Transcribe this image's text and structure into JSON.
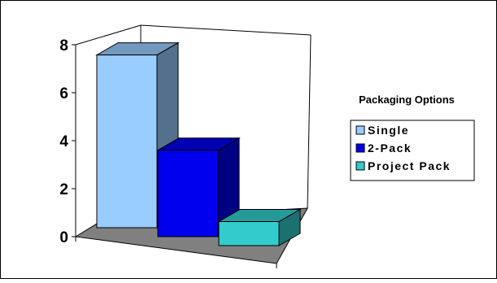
{
  "chart_data": {
    "type": "bar",
    "chart_style": "3d-column",
    "categories": [
      "Single",
      "2-Pack",
      "Project Pack"
    ],
    "values": [
      7.2,
      3.6,
      1.0
    ],
    "ylim": [
      0,
      8
    ],
    "yticks": [
      0,
      2,
      4,
      6,
      8
    ],
    "title": "",
    "xlabel": "",
    "ylabel": "",
    "grid": false,
    "legend": {
      "title": "Packaging Options",
      "placement": "right",
      "entries": [
        "Single",
        "2-Pack",
        "Project Pack"
      ]
    },
    "colors": {
      "Single": "#99ccff",
      "2-Pack": "#0000ee",
      "Project Pack": "#33cccc",
      "floor": "#808080"
    }
  }
}
